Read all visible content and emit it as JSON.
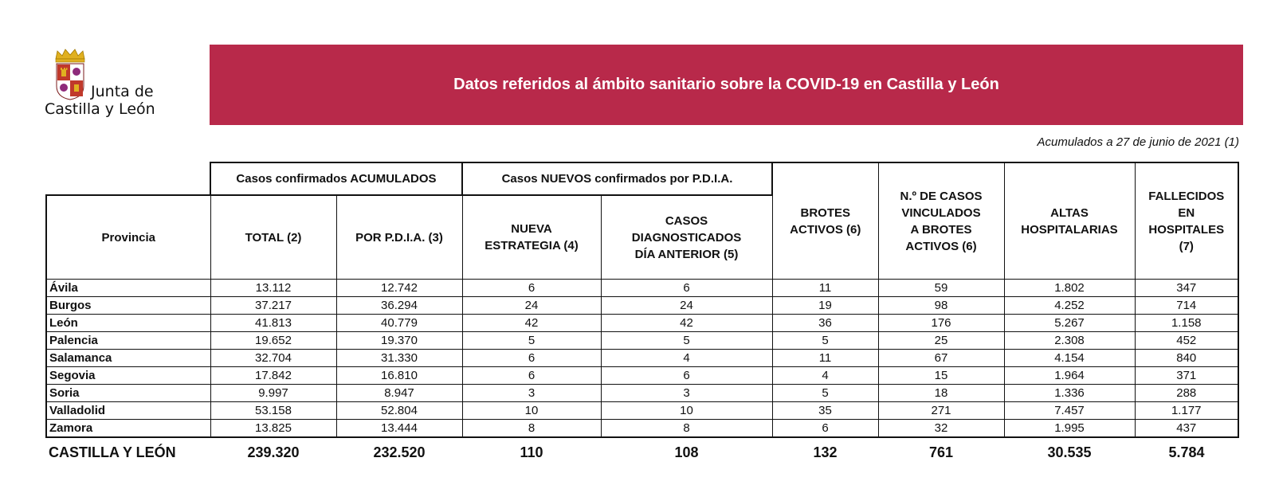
{
  "logo": {
    "line1": "Junta de",
    "line2": "Castilla y León"
  },
  "banner": {
    "title": "Datos referidos al ámbito sanitario sobre la COVID-19 en Castilla y León"
  },
  "date_note": "Acumulados a 27 de junio de 2021 (1)",
  "group_headers": {
    "acumulados": "Casos confirmados ACUMULADOS",
    "nuevos": "Casos NUEVOS confirmados por P.D.I.A."
  },
  "columns": {
    "provincia": "Provincia",
    "total": "TOTAL (2)",
    "por_pdia": "POR P.D.I.A. (3)",
    "nueva_estrategia": [
      "NUEVA",
      "ESTRATEGIA (4)"
    ],
    "dia_anterior": [
      "CASOS",
      "DIAGNOSTICADOS",
      "DÍA ANTERIOR (5)"
    ],
    "brotes": [
      "BROTES",
      "ACTIVOS (6)"
    ],
    "vinculados": [
      "N.º DE CASOS",
      "VINCULADOS",
      "A BROTES",
      "ACTIVOS (6)"
    ],
    "altas": [
      "ALTAS",
      "HOSPITALARIAS"
    ],
    "fallecidos": [
      "FALLECIDOS",
      "EN",
      "HOSPITALES",
      "(7)"
    ]
  },
  "rows": [
    [
      "Ávila",
      "13.112",
      "12.742",
      "6",
      "6",
      "11",
      "59",
      "1.802",
      "347"
    ],
    [
      "Burgos",
      "37.217",
      "36.294",
      "24",
      "24",
      "19",
      "98",
      "4.252",
      "714"
    ],
    [
      "León",
      "41.813",
      "40.779",
      "42",
      "42",
      "36",
      "176",
      "5.267",
      "1.158"
    ],
    [
      "Palencia",
      "19.652",
      "19.370",
      "5",
      "5",
      "5",
      "25",
      "2.308",
      "452"
    ],
    [
      "Salamanca",
      "32.704",
      "31.330",
      "6",
      "4",
      "11",
      "67",
      "4.154",
      "840"
    ],
    [
      "Segovia",
      "17.842",
      "16.810",
      "6",
      "6",
      "4",
      "15",
      "1.964",
      "371"
    ],
    [
      "Soria",
      "9.997",
      "8.947",
      "3",
      "3",
      "5",
      "18",
      "1.336",
      "288"
    ],
    [
      "Valladolid",
      "53.158",
      "52.804",
      "10",
      "10",
      "35",
      "271",
      "7.457",
      "1.177"
    ],
    [
      "Zamora",
      "13.825",
      "13.444",
      "8",
      "8",
      "6",
      "32",
      "1.995",
      "437"
    ]
  ],
  "total_row": [
    "CASTILLA Y LEÓN",
    "239.320",
    "232.520",
    "110",
    "108",
    "132",
    "761",
    "30.535",
    "5.784"
  ],
  "colors": {
    "banner": "#b8294a",
    "logo_red": "#c0392b",
    "crown_gold": "#e0b020"
  }
}
